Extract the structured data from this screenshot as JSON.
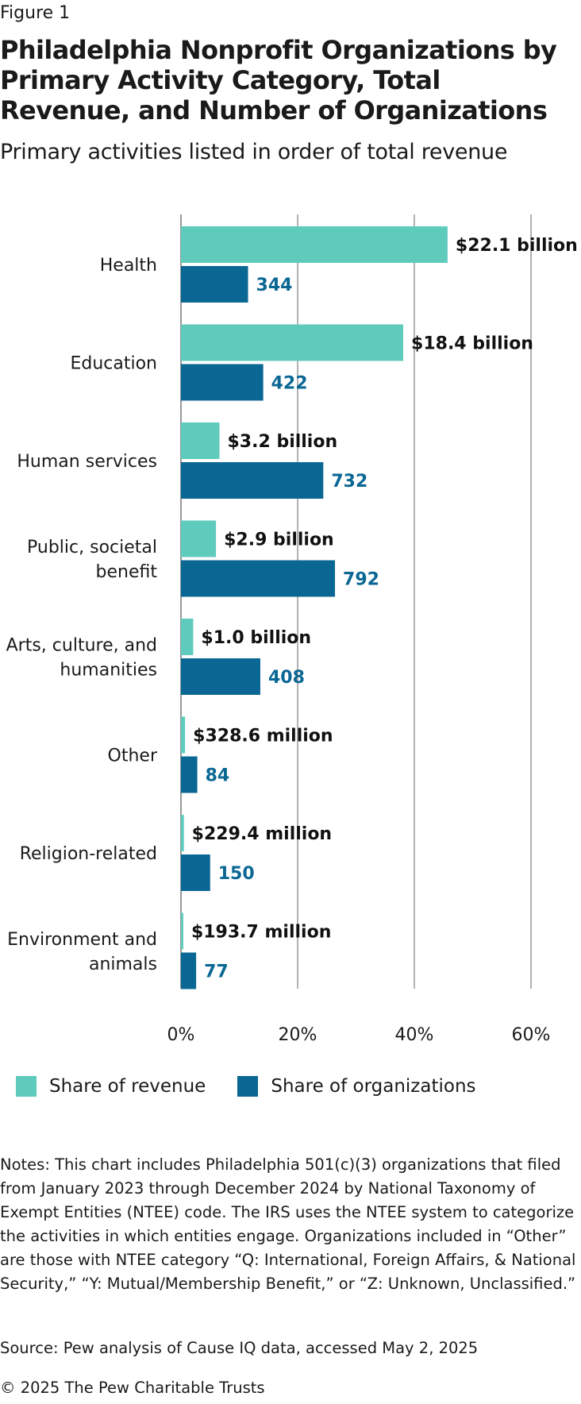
{
  "figure_label": "Figure 1",
  "title": "Philadelphia Nonprofit Organizations by Primary Activity Category, Total Revenue, and Number of Organizations",
  "subtitle": "Primary activities listed in order of total revenue",
  "colors": {
    "revenue": "#5ecbbd",
    "organizations": "#0a6794",
    "org_label": "#0a6794",
    "grid": "#999999"
  },
  "chart_data": {
    "type": "bar",
    "orientation": "horizontal",
    "categories": [
      [
        "Health"
      ],
      [
        "Education"
      ],
      [
        "Human services"
      ],
      [
        "Public, societal",
        "benefit"
      ],
      [
        "Arts, culture, and",
        "humanities"
      ],
      [
        "Other"
      ],
      [
        "Religion-related"
      ],
      [
        "Environment and",
        "animals"
      ]
    ],
    "series": [
      {
        "name": "Share of revenue",
        "values": [
          45.7,
          38.1,
          6.6,
          6.0,
          2.1,
          0.7,
          0.5,
          0.4
        ],
        "labels": [
          "$22.1 billion",
          "$18.4 billion",
          "$3.2 billion",
          "$2.9 billion",
          "$1.0 billion",
          "$328.6 million",
          "$229.4 million",
          "$193.7 million"
        ]
      },
      {
        "name": "Share of organizations",
        "values": [
          11.5,
          14.1,
          24.4,
          26.4,
          13.6,
          2.8,
          5.0,
          2.6
        ],
        "labels": [
          "344",
          "422",
          "732",
          "792",
          "408",
          "84",
          "150",
          "77"
        ]
      }
    ],
    "xlim": [
      0,
      60
    ],
    "xticks": [
      "0%",
      "20%",
      "40%",
      "60%"
    ],
    "grid": true,
    "legend_position": "bottom"
  },
  "legend": {
    "revenue": "Share of revenue",
    "organizations": "Share of organizations"
  },
  "notes": "Notes: This chart includes Philadelphia 501(c)(3) organizations that filed from January 2023 through December 2024 by National Taxonomy of Exempt Entities (NTEE) code. The IRS uses the NTEE system to categorize the activities in which entities engage. Organizations included in “Other” are those with NTEE category “Q: International, Foreign Affairs, & National Security,” “Y: Mutual/Membership Benefit,” or “Z: Unknown, Unclassified.”",
  "source": "Source: Pew analysis of Cause IQ data, accessed May 2, 2025",
  "copyright": "© 2025 The Pew Charitable Trusts"
}
